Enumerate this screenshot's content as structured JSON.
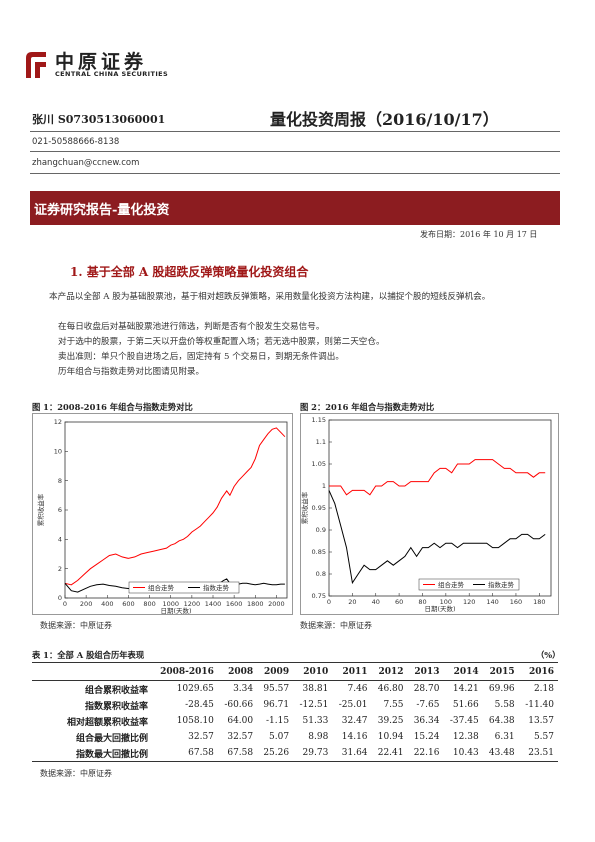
{
  "header": {
    "logo_cn": "中原证券",
    "logo_en": "CENTRAL CHINA SECURITIES",
    "author": "张川 S0730513060001",
    "phone": "021-50588666-8138",
    "email": "zhangchuan@ccnew.com",
    "title": "量化投资周报（2016/10/17）"
  },
  "banner": {
    "text": "证券研究报告-量化投资"
  },
  "publish_date": "发布日期：2016 年 10 月 17 日",
  "section": {
    "title": "1. 基于全部 A 股超跌反弹策略量化投资组合",
    "paragraphs": [
      "本产品以全部 A 股为基础股票池，基于相对超跌反弹策略，采用数量化投资方法构建，以捕捉个股的短线反弹机会。",
      "在每日收盘后对基础股票池进行筛选，判断是否有个股发生交易信号。",
      "对于选中的股票，于第二天以开盘价等权重配置入场；若无选中股票，则第二天空仓。",
      "卖出准则：单只个股自进场之后，固定持有 5 个交易日，到期无条件调出。",
      "历年组合与指数走势对比图请见附录。"
    ]
  },
  "figure1": {
    "caption": "图 1：2008-2016 年组合与指数走势对比",
    "source": "数据来源：中原证券",
    "chart_data": {
      "type": "line",
      "xlabel": "日期(天数)",
      "ylabel": "累积收益率",
      "xlim": [
        0,
        2100
      ],
      "ylim": [
        0,
        12
      ],
      "xticks": [
        0,
        200,
        400,
        600,
        800,
        1000,
        1200,
        1400,
        1600,
        1800,
        2000
      ],
      "yticks": [
        0,
        2,
        4,
        6,
        8,
        10,
        12
      ],
      "legend": "bottom-center",
      "series": [
        {
          "name": "组合走势",
          "color": "#ff0000",
          "x": [
            0,
            60,
            120,
            180,
            240,
            300,
            360,
            420,
            480,
            540,
            600,
            660,
            720,
            780,
            840,
            900,
            960,
            1000,
            1040,
            1080,
            1120,
            1160,
            1200,
            1240,
            1280,
            1320,
            1360,
            1400,
            1440,
            1480,
            1500,
            1530,
            1560,
            1600,
            1640,
            1680,
            1720,
            1760,
            1800,
            1840,
            1880,
            1920,
            1960,
            2000,
            2040,
            2080
          ],
          "y": [
            1.0,
            0.9,
            1.2,
            1.6,
            2.0,
            2.3,
            2.6,
            2.9,
            3.0,
            2.8,
            2.7,
            2.8,
            3.0,
            3.1,
            3.2,
            3.3,
            3.4,
            3.6,
            3.7,
            3.9,
            4.0,
            4.2,
            4.5,
            4.7,
            4.9,
            5.2,
            5.5,
            5.8,
            6.2,
            6.8,
            7.0,
            7.3,
            7.0,
            7.6,
            8.0,
            8.3,
            8.6,
            8.9,
            9.5,
            10.4,
            10.8,
            11.2,
            11.5,
            11.6,
            11.3,
            11.0
          ]
        },
        {
          "name": "指数走势",
          "color": "#000000",
          "x": [
            0,
            60,
            120,
            180,
            240,
            300,
            360,
            420,
            480,
            540,
            600,
            660,
            720,
            780,
            840,
            900,
            960,
            1000,
            1040,
            1080,
            1120,
            1160,
            1200,
            1240,
            1280,
            1320,
            1360,
            1400,
            1440,
            1480,
            1500,
            1530,
            1560,
            1600,
            1640,
            1680,
            1720,
            1760,
            1800,
            1840,
            1880,
            1920,
            1960,
            2000,
            2040,
            2080
          ],
          "y": [
            1.0,
            0.5,
            0.4,
            0.6,
            0.8,
            0.9,
            0.95,
            0.85,
            0.8,
            0.7,
            0.65,
            0.6,
            0.55,
            0.5,
            0.5,
            0.55,
            0.5,
            0.55,
            0.5,
            0.55,
            0.5,
            0.5,
            0.55,
            0.6,
            0.6,
            0.7,
            0.75,
            0.8,
            0.95,
            1.1,
            1.2,
            1.3,
            1.0,
            0.9,
            0.95,
            1.0,
            1.0,
            0.95,
            0.9,
            0.95,
            1.0,
            0.95,
            0.9,
            0.9,
            0.95,
            0.95
          ]
        }
      ]
    }
  },
  "figure2": {
    "caption": "图 2：2016 年组合与指数走势对比",
    "source": "数据来源：中原证券",
    "chart_data": {
      "type": "line",
      "xlabel": "日期(天数)",
      "ylabel": "累积收益率",
      "xlim": [
        0,
        190
      ],
      "ylim": [
        0.75,
        1.15
      ],
      "xticks": [
        0,
        20,
        40,
        60,
        80,
        100,
        120,
        140,
        160,
        180
      ],
      "yticks": [
        0.75,
        0.8,
        0.85,
        0.9,
        0.95,
        1.0,
        1.05,
        1.1,
        1.15
      ],
      "legend": "bottom-right",
      "series": [
        {
          "name": "组合走势",
          "color": "#ff0000",
          "x": [
            0,
            5,
            10,
            15,
            20,
            25,
            30,
            35,
            40,
            45,
            50,
            55,
            60,
            65,
            70,
            75,
            80,
            85,
            90,
            95,
            100,
            105,
            110,
            115,
            120,
            125,
            130,
            135,
            140,
            145,
            150,
            155,
            160,
            165,
            170,
            175,
            180,
            185
          ],
          "y": [
            1.0,
            1.0,
            1.0,
            0.98,
            0.99,
            0.99,
            0.99,
            0.98,
            1.0,
            1.0,
            1.01,
            1.01,
            1.0,
            1.0,
            1.01,
            1.01,
            1.01,
            1.01,
            1.03,
            1.04,
            1.04,
            1.03,
            1.05,
            1.05,
            1.05,
            1.06,
            1.06,
            1.06,
            1.06,
            1.05,
            1.04,
            1.04,
            1.03,
            1.03,
            1.03,
            1.02,
            1.03,
            1.03
          ]
        },
        {
          "name": "指数走势",
          "color": "#000000",
          "x": [
            0,
            5,
            10,
            15,
            20,
            25,
            30,
            35,
            40,
            45,
            50,
            55,
            60,
            65,
            70,
            75,
            80,
            85,
            90,
            95,
            100,
            105,
            110,
            115,
            120,
            125,
            130,
            135,
            140,
            145,
            150,
            155,
            160,
            165,
            170,
            175,
            180,
            185
          ],
          "y": [
            0.99,
            0.96,
            0.91,
            0.86,
            0.78,
            0.8,
            0.82,
            0.81,
            0.81,
            0.82,
            0.83,
            0.82,
            0.83,
            0.84,
            0.86,
            0.84,
            0.86,
            0.86,
            0.87,
            0.86,
            0.87,
            0.87,
            0.86,
            0.87,
            0.87,
            0.87,
            0.87,
            0.87,
            0.86,
            0.86,
            0.87,
            0.88,
            0.88,
            0.89,
            0.89,
            0.88,
            0.88,
            0.89
          ]
        }
      ]
    }
  },
  "table1": {
    "caption": "表 1：全部 A 股组合历年表现",
    "unit": "（%）",
    "source": "数据来源：中原证券",
    "columns": [
      "2008-2016",
      "2008",
      "2009",
      "2010",
      "2011",
      "2012",
      "2013",
      "2014",
      "2015",
      "2016"
    ],
    "rows": [
      {
        "label": "组合累积收益率",
        "values": [
          "1029.65",
          "3.34",
          "95.57",
          "38.81",
          "7.46",
          "46.80",
          "28.70",
          "14.21",
          "69.96",
          "2.18"
        ]
      },
      {
        "label": "指数累积收益率",
        "values": [
          "-28.45",
          "-60.66",
          "96.71",
          "-12.51",
          "-25.01",
          "7.55",
          "-7.65",
          "51.66",
          "5.58",
          "-11.40"
        ]
      },
      {
        "label": "相对超额累积收益率",
        "values": [
          "1058.10",
          "64.00",
          "-1.15",
          "51.33",
          "32.47",
          "39.25",
          "36.34",
          "-37.45",
          "64.38",
          "13.57"
        ]
      },
      {
        "label": "组合最大回撤比例",
        "values": [
          "32.57",
          "32.57",
          "5.07",
          "8.98",
          "14.16",
          "10.94",
          "15.24",
          "12.38",
          "6.31",
          "5.57"
        ]
      },
      {
        "label": "指数最大回撤比例",
        "values": [
          "67.58",
          "67.58",
          "25.26",
          "29.73",
          "31.64",
          "22.41",
          "22.16",
          "10.43",
          "43.48",
          "23.51"
        ]
      }
    ]
  }
}
